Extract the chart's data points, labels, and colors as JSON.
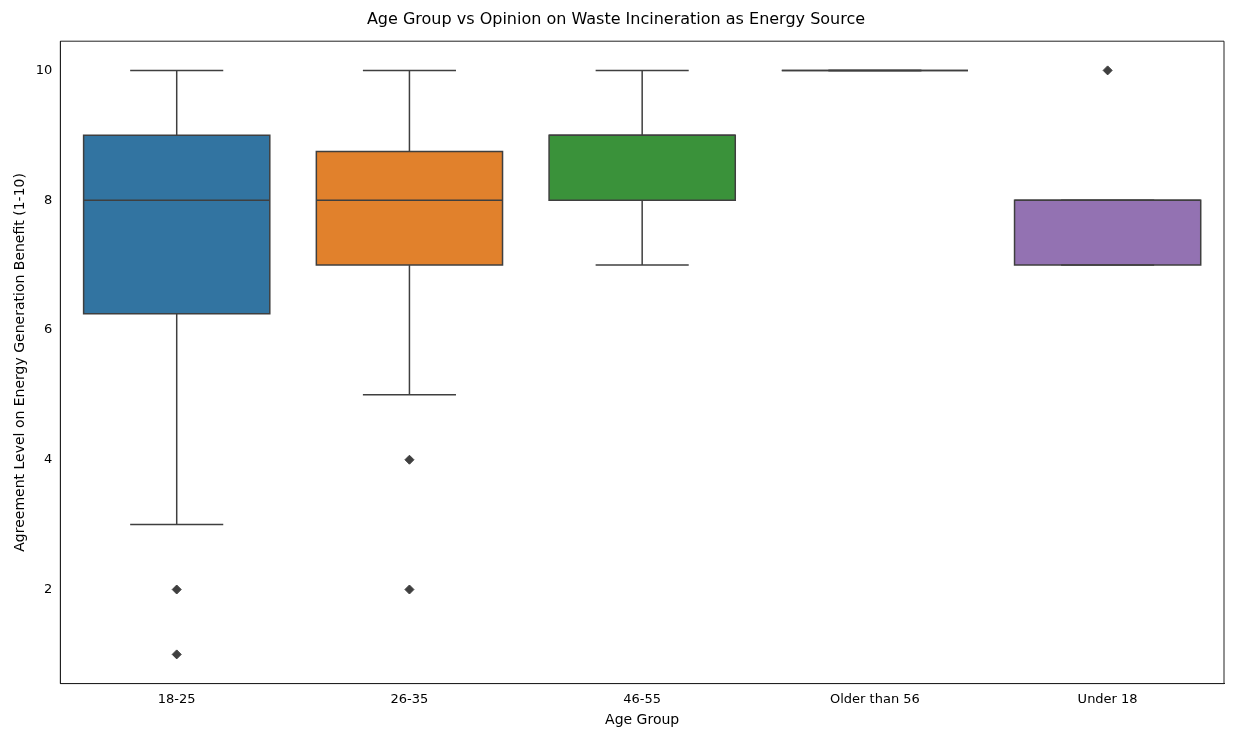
{
  "chart_data": {
    "type": "box",
    "title": "Age Group vs Opinion on Waste Incineration as Energy Source",
    "xlabel": "Age Group",
    "ylabel": "Agreement Level on Energy Generation Benefit (1-10)",
    "categories": [
      "18-25",
      "26-35",
      "46-55",
      "Older than 56",
      "Under 18"
    ],
    "colors": [
      "#3274a1",
      "#e1812c",
      "#3a923a",
      "#3f3f3f",
      "#9372b2"
    ],
    "boxes": [
      {
        "low": 3,
        "q1": 6.25,
        "median": 8,
        "q3": 9,
        "high": 10,
        "outliers": [
          2,
          1
        ]
      },
      {
        "low": 5,
        "q1": 7,
        "median": 8,
        "q3": 8.75,
        "high": 10,
        "outliers": [
          4,
          2
        ]
      },
      {
        "low": 7,
        "q1": 8,
        "median": 9,
        "q3": 9,
        "high": 10
      },
      {
        "low": 10,
        "q1": 10,
        "median": 10,
        "q3": 10,
        "high": 10
      },
      {
        "low": 7,
        "q1": 7,
        "median": 8,
        "q3": 8,
        "high": 8,
        "outliers": [
          10
        ]
      }
    ],
    "ylim": [
      0.55,
      10.45
    ],
    "yticks": [
      2,
      4,
      6,
      8,
      10
    ],
    "grid": false,
    "legend": false
  }
}
